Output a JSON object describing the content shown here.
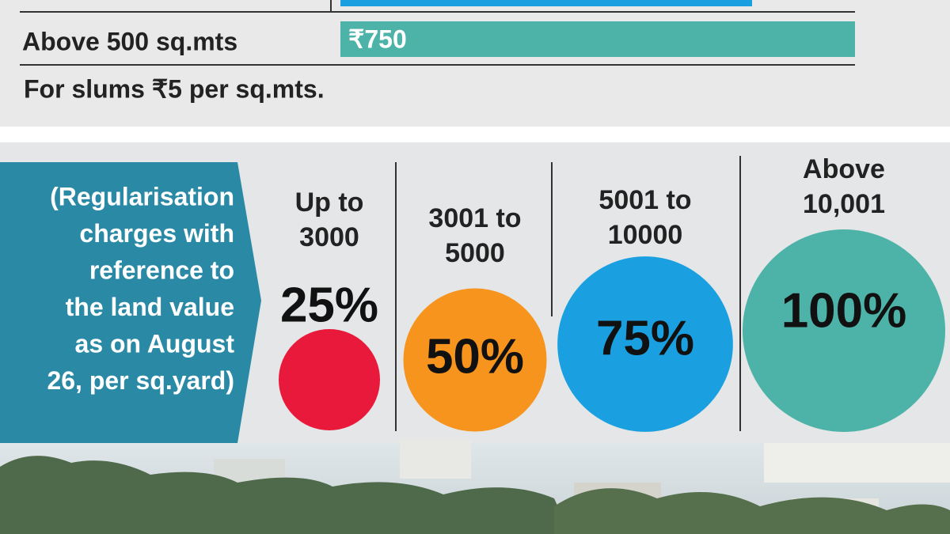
{
  "top": {
    "rows": [
      {
        "label": "Above 500 sq.mts",
        "rate": "₹750"
      }
    ],
    "note": "For slums ₹5 per sq.mts."
  },
  "panel": {
    "text_lines": [
      "(Regularisation",
      "charges with",
      "reference to",
      "the land value",
      "as on August",
      "26, per sq.yard)"
    ]
  },
  "slabs": [
    {
      "range_lines": [
        "Up to",
        "3000"
      ],
      "value": 25,
      "label": "25%",
      "color": "#e8193a"
    },
    {
      "range_lines": [
        "3001 to",
        "5000"
      ],
      "value": 50,
      "label": "50%",
      "color": "#f7941d"
    },
    {
      "range_lines": [
        "5001 to",
        "10000"
      ],
      "value": 75,
      "label": "75%",
      "color": "#1aa0e0"
    },
    {
      "range_lines": [
        "Above",
        "10,001"
      ],
      "value": 100,
      "label": "100%",
      "color": "#4db3a8"
    }
  ]
}
